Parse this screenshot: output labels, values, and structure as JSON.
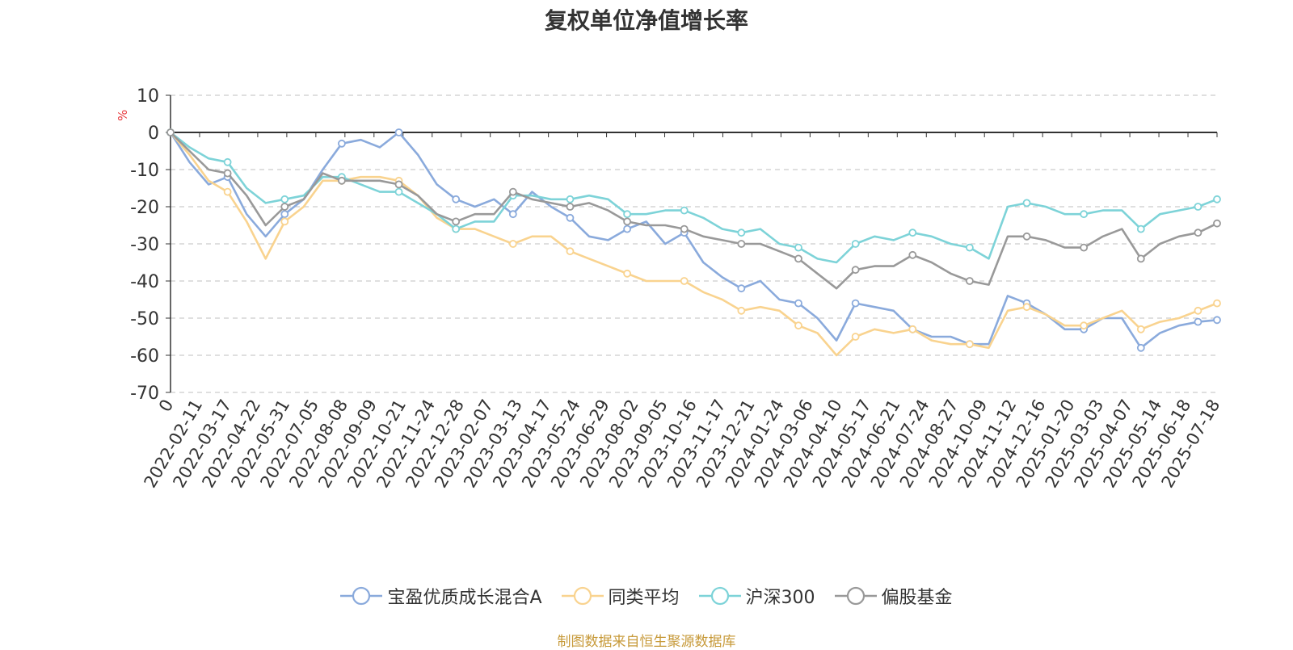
{
  "chart_data": {
    "type": "line",
    "title": "复权单位净值增长率",
    "ylabel": "%",
    "ylim": [
      -70,
      10
    ],
    "yticks": [
      10,
      0,
      -10,
      -20,
      -30,
      -40,
      -50,
      -60,
      -70
    ],
    "grid": true,
    "legend_position": "bottom",
    "source": "制图数据来自恒生聚源数据库",
    "x_tick_labels": [
      "0",
      "2022-02-11",
      "2022-03-17",
      "2022-04-22",
      "2022-05-31",
      "2022-07-05",
      "2022-08-08",
      "2022-09-09",
      "2022-10-21",
      "2022-11-24",
      "2022-12-28",
      "2023-02-07",
      "2023-03-13",
      "2023-04-17",
      "2023-05-24",
      "2023-06-29",
      "2023-08-02",
      "2023-09-05",
      "2023-10-16",
      "2023-11-17",
      "2023-12-21",
      "2024-01-24",
      "2024-03-06",
      "2024-04-10",
      "2024-05-17",
      "2024-06-21",
      "2024-07-24",
      "2024-08-27",
      "2024-10-09",
      "2024-11-12",
      "2024-12-16",
      "2025-01-20",
      "2025-03-03",
      "2025-04-07",
      "2025-05-14",
      "2025-06-18",
      "2025-07-18"
    ],
    "series": [
      {
        "name": "宝盈优质成长混合A",
        "color": "#8aaadc",
        "values": [
          0,
          -8,
          -14,
          -12,
          -22,
          -28,
          -22,
          -18,
          -10,
          -3,
          -2,
          -4,
          0,
          -6,
          -14,
          -18,
          -20,
          -18,
          -22,
          -16,
          -20,
          -23,
          -28,
          -29,
          -26,
          -24,
          -30,
          -27,
          -35,
          -39,
          -42,
          -40,
          -45,
          -46,
          -50,
          -56,
          -46,
          -47,
          -48,
          -53,
          -55,
          -55,
          -57,
          -57,
          -44,
          -46,
          -49,
          -53,
          -53,
          -50,
          -50,
          -58,
          -54,
          -52,
          -51,
          -50.5
        ]
      },
      {
        "name": "同类平均",
        "color": "#f9d38f",
        "values": [
          0,
          -6,
          -13,
          -16,
          -24,
          -34,
          -24,
          -20,
          -13,
          -13,
          -12,
          -12,
          -13,
          -17,
          -23,
          -26,
          -26,
          -28,
          -30,
          -28,
          -28,
          -32,
          -34,
          -36,
          -38,
          -40,
          -40,
          -40,
          -43,
          -45,
          -48,
          -47,
          -48,
          -52,
          -54,
          -60,
          -55,
          -53,
          -54,
          -53,
          -56,
          -57,
          -57,
          -58,
          -48,
          -47,
          -49,
          -52,
          -52,
          -50,
          -48,
          -53,
          -51,
          -50,
          -48,
          -46
        ]
      },
      {
        "name": "沪深300",
        "color": "#7dd3d8",
        "values": [
          0,
          -4,
          -7,
          -8,
          -15,
          -19,
          -18,
          -17,
          -12,
          -12,
          -14,
          -16,
          -16,
          -19,
          -22,
          -26,
          -24,
          -24,
          -17,
          -17,
          -18,
          -18,
          -17,
          -18,
          -22,
          -22,
          -21,
          -21,
          -23,
          -26,
          -27,
          -26,
          -30,
          -31,
          -34,
          -35,
          -30,
          -28,
          -29,
          -27,
          -28,
          -30,
          -31,
          -34,
          -20,
          -19,
          -20,
          -22,
          -22,
          -21,
          -21,
          -26,
          -22,
          -21,
          -20,
          -18
        ]
      },
      {
        "name": "偏股基金",
        "color": "#999999",
        "values": [
          0,
          -5,
          -10,
          -11,
          -17,
          -25,
          -20,
          -18,
          -11,
          -13,
          -13,
          -13,
          -14,
          -17,
          -22,
          -24,
          -22,
          -22,
          -16,
          -18,
          -19,
          -20,
          -19,
          -21,
          -24,
          -25,
          -25,
          -26,
          -28,
          -29,
          -30,
          -30,
          -32,
          -34,
          -38,
          -42,
          -37,
          -36,
          -36,
          -33,
          -35,
          -38,
          -40,
          -41,
          -28,
          -28,
          -29,
          -31,
          -31,
          -28,
          -26,
          -34,
          -30,
          -28,
          -27,
          -24.5
        ]
      }
    ]
  }
}
